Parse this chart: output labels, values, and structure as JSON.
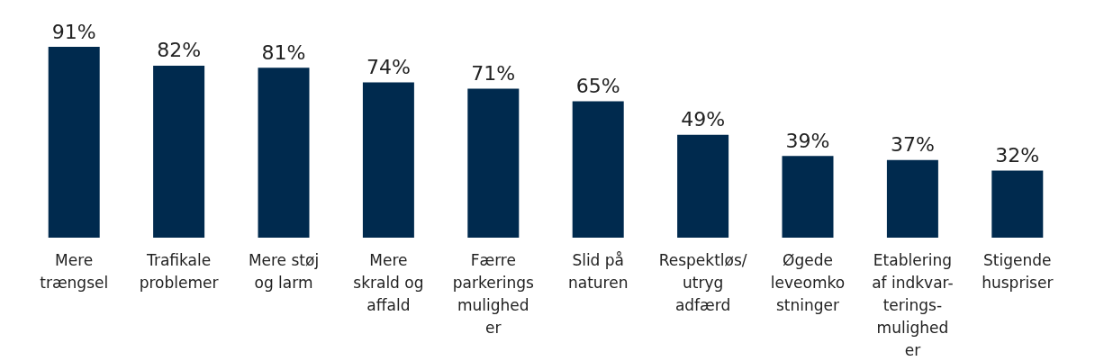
{
  "chart_data": {
    "type": "bar",
    "categories": [
      "Mere\ntrængsel",
      "Trafikale\nproblemer",
      "Mere støj\nog larm",
      "Mere\nskrald og\naffald",
      "Færre\nparkerings\nmulighed\ner",
      "Slid på\nnaturen",
      "Respektløs/\nutryg\nadfærd",
      "Øgede\nleveomko\nstninger",
      "Etablering\naf indkvar-\nterings-\nmulighed\ner",
      "Stigende\nhuspriser"
    ],
    "values": [
      91,
      82,
      81,
      74,
      71,
      65,
      49,
      39,
      37,
      32
    ],
    "value_labels": [
      "91%",
      "82%",
      "81%",
      "74%",
      "71%",
      "65%",
      "49%",
      "39%",
      "37%",
      "32%"
    ],
    "color": "#002a4e"
  }
}
